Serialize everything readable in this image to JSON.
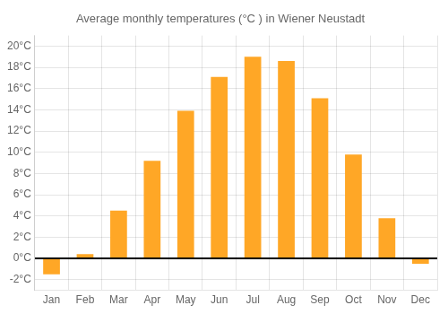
{
  "chart_data": {
    "type": "bar",
    "title": "Average monthly temperatures (°C ) in Wiener Neustadt",
    "categories": [
      "Jan",
      "Feb",
      "Mar",
      "Apr",
      "May",
      "Jun",
      "Jul",
      "Aug",
      "Sep",
      "Oct",
      "Nov",
      "Dec"
    ],
    "values": [
      -1.5,
      0.4,
      4.5,
      9.2,
      13.9,
      17.1,
      19.0,
      18.6,
      15.1,
      9.8,
      3.8,
      -0.5
    ],
    "color": "#FFA726",
    "ylim": [
      -3,
      21
    ],
    "yticks": [
      {
        "value": -2,
        "label": "-2°C"
      },
      {
        "value": 0,
        "label": "0°C"
      },
      {
        "value": 2,
        "label": "2°C"
      },
      {
        "value": 4,
        "label": "4°C"
      },
      {
        "value": 6,
        "label": "6°C"
      },
      {
        "value": 8,
        "label": "8°C"
      },
      {
        "value": 10,
        "label": "10°C"
      },
      {
        "value": 12,
        "label": "12°C"
      },
      {
        "value": 14,
        "label": "14°C"
      },
      {
        "value": 16,
        "label": "16°C"
      },
      {
        "value": 18,
        "label": "18°C"
      },
      {
        "value": 20,
        "label": "20°C"
      }
    ],
    "grid": true
  }
}
